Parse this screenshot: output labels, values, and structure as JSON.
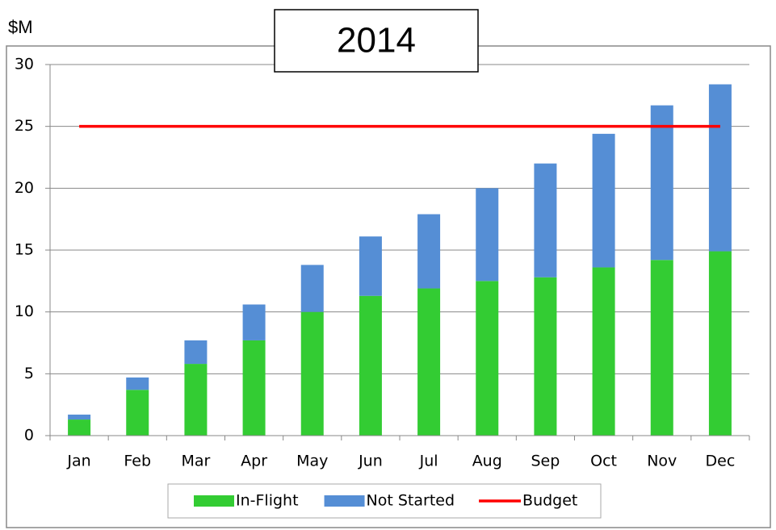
{
  "chart_data": {
    "type": "bar",
    "stacked": true,
    "title": "2014",
    "y_label": "$M",
    "categories": [
      "Jan",
      "Feb",
      "Mar",
      "Apr",
      "May",
      "Jun",
      "Jul",
      "Aug",
      "Sep",
      "Oct",
      "Nov",
      "Dec"
    ],
    "series": [
      {
        "name": "In-Flight",
        "type": "bar",
        "color": "#33cc33",
        "values": [
          1.3,
          3.7,
          5.8,
          7.7,
          10.0,
          11.3,
          11.9,
          12.5,
          12.8,
          13.6,
          14.2,
          14.9
        ]
      },
      {
        "name": "Not Started",
        "type": "bar",
        "color": "#558ed5",
        "values": [
          0.4,
          1.0,
          1.9,
          2.9,
          3.8,
          4.8,
          6.0,
          7.5,
          9.2,
          10.8,
          12.5,
          13.5
        ]
      },
      {
        "name": "Budget",
        "type": "line",
        "color": "#ff0000",
        "values": [
          25,
          25,
          25,
          25,
          25,
          25,
          25,
          25,
          25,
          25,
          25,
          25
        ]
      }
    ],
    "ylim": [
      0,
      30
    ],
    "yticks": [
      0,
      5,
      10,
      15,
      20,
      25,
      30
    ],
    "grid": true,
    "legend": "bottom"
  }
}
